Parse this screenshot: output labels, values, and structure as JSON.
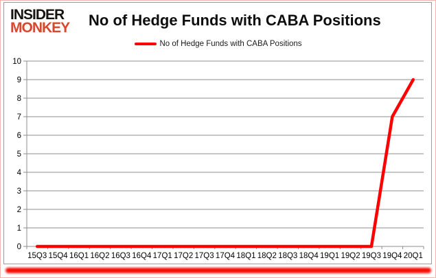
{
  "page": {
    "background": "#ffffff",
    "outer_border_color": "#f0b4ab"
  },
  "logo": {
    "line1": "INSIDER",
    "line2": "MONKEY",
    "line1_color": "#161310",
    "line2_color": "#d5492e"
  },
  "title": "No of Hedge Funds with CABA Positions",
  "legend": {
    "label": "No of Hedge Funds with CABA Positions",
    "marker_color": "#ff0000"
  },
  "chart_data": {
    "type": "line",
    "title": "No of Hedge Funds with CABA Positions",
    "series": [
      {
        "name": "No of Hedge Funds with CABA Positions",
        "values": [
          0,
          0,
          0,
          0,
          0,
          0,
          0,
          0,
          0,
          0,
          0,
          0,
          0,
          0,
          0,
          0,
          0,
          7,
          9
        ]
      }
    ],
    "categories": [
      "15Q3",
      "15Q4",
      "16Q1",
      "16Q2",
      "16Q3",
      "16Q4",
      "17Q1",
      "17Q2",
      "17Q3",
      "17Q4",
      "18Q1",
      "18Q2",
      "18Q3",
      "18Q4",
      "19Q1",
      "19Q2",
      "19Q3",
      "19Q4",
      "20Q1"
    ],
    "xlabel": "",
    "ylabel": "",
    "ylim": [
      0,
      10
    ],
    "yticks": [
      0,
      1,
      2,
      3,
      4,
      5,
      6,
      7,
      8,
      9,
      10
    ],
    "grid": true,
    "legend_position": "top-center",
    "line_color": "#ff0000",
    "line_width": 4.5,
    "gridline_color": "#8c8c8c",
    "axis_color": "#8c8c8c",
    "tick_label_color": "#000000"
  },
  "decor": {
    "bottom_bar_color": "#f30d05"
  }
}
